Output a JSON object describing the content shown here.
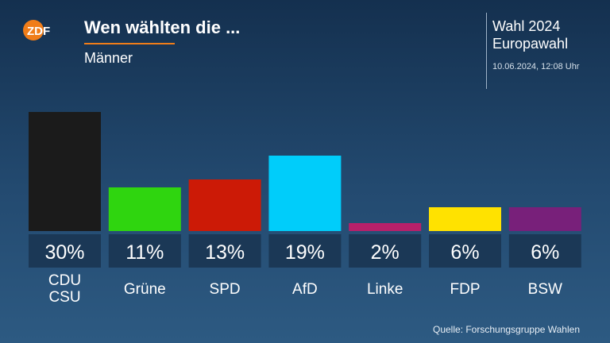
{
  "header": {
    "logo_text": "ZDF",
    "title": "Wen wählten die ...",
    "subtitle": "Männer",
    "election_line1": "Wahl 2024",
    "election_line2": "Europawahl",
    "timestamp": "10.06.2024, 12:08 Uhr"
  },
  "colors": {
    "accent": "#f07d19",
    "label_box": "#1b3856"
  },
  "chart_data": {
    "type": "bar",
    "title": "Wen wählten die ...",
    "subtitle": "Männer",
    "categories": [
      "CDU\nCSU",
      "Grüne",
      "SPD",
      "AfD",
      "Linke",
      "FDP",
      "BSW"
    ],
    "values": [
      30,
      11,
      13,
      19,
      2,
      6,
      6
    ],
    "value_labels": [
      "30%",
      "11%",
      "13%",
      "19%",
      "2%",
      "6%",
      "6%"
    ],
    "colors": [
      "#1b1b1b",
      "#2fd50f",
      "#cc1a06",
      "#00cdfa",
      "#b8206a",
      "#ffe200",
      "#78207a"
    ],
    "ylim": [
      0,
      30
    ],
    "grid": false,
    "legend": "none"
  },
  "footer": {
    "source": "Quelle: Forschungsgruppe Wahlen"
  }
}
